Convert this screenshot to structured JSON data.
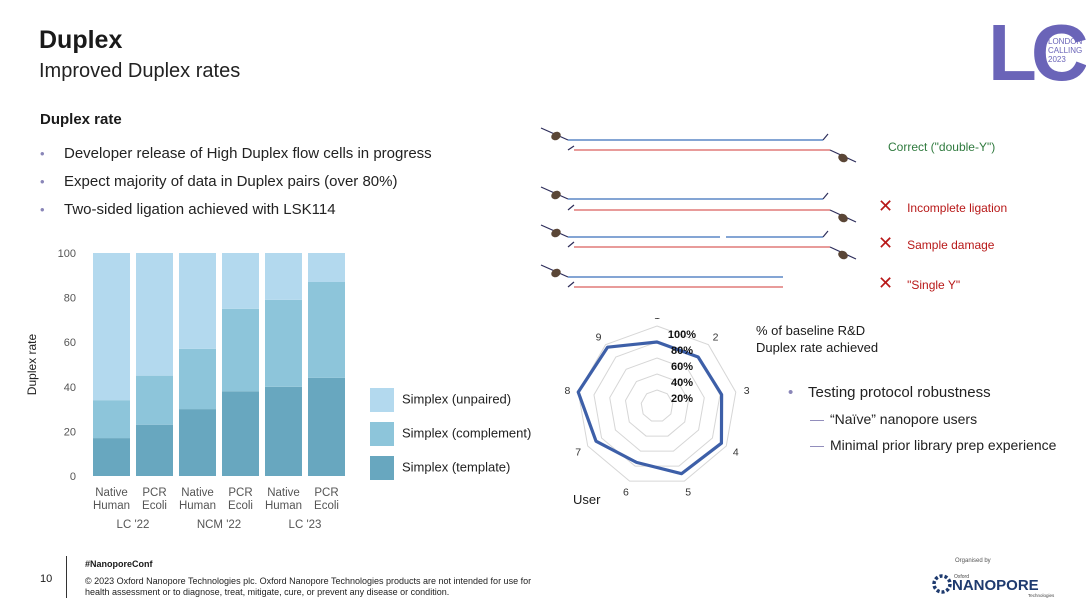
{
  "slide": {
    "title": "Duplex",
    "subtitle": "Improved Duplex rates",
    "section_title": "Duplex rate",
    "bullets": [
      "Developer release of High Duplex flow cells in progress",
      "Expect majority of data in Duplex pairs (over 80%)",
      "Two-sided ligation achieved with LSK114"
    ],
    "logo_lc": {
      "letters": "LC",
      "text_lines": [
        "LONDON",
        "CALLING",
        "2023"
      ]
    }
  },
  "diagram": {
    "labels": {
      "correct": "Correct (\"double-Y\")",
      "incomplete": "Incomplete ligation",
      "damage": "Sample damage",
      "single": "\"Single Y\""
    },
    "icons": [
      "cross-icon",
      "cross-icon",
      "cross-icon"
    ]
  },
  "radar": {
    "caption_lines": [
      "% of baseline R&D",
      "Duplex rate achieved"
    ],
    "user_label": "User",
    "ring_labels": [
      "100%",
      "80%",
      "60%",
      "40%",
      "20%"
    ]
  },
  "right_bullets": {
    "main": "Testing protocol robustness",
    "subs": [
      "“Naïve” nanopore users",
      "Minimal prior library prep experience"
    ]
  },
  "footer": {
    "page_number": "10",
    "hashtag": "#NanoporeConf",
    "copyright": "© 2023 Oxford Nanopore Technologies plc. Oxford Nanopore Technologies products are not intended for use for health assessment or to diagnose, treat, mitigate, cure, or prevent any disease or condition.",
    "organised_by": "Organised by",
    "brand": "NANOPORE",
    "brand_small_top": "Oxford",
    "brand_small_bottom": "Technologies"
  },
  "colors": {
    "unpaired": "#b3d9ee",
    "complement": "#8dc5da",
    "template": "#68a7bf",
    "radar_line": "#3d5fa8",
    "accent_purple": "#6a64b8",
    "strand_blue": "#5b87c6",
    "strand_red": "#e07a78",
    "strand_dark": "#2d2d5a",
    "adapter": "#5a4636",
    "cross": "#b81818",
    "correct_text": "#2f7a3e",
    "error_text": "#b81818"
  },
  "chart_data": [
    {
      "type": "bar",
      "stacked": true,
      "ylabel": "Duplex rate",
      "ylim": [
        0,
        100
      ],
      "yticks": [
        0,
        20,
        40,
        60,
        80,
        100
      ],
      "categories": [
        [
          "Native",
          "Human"
        ],
        [
          "PCR",
          "Ecoli"
        ],
        [
          "Native",
          "Human"
        ],
        [
          "PCR",
          "Ecoli"
        ],
        [
          "Native",
          "Human"
        ],
        [
          "PCR",
          "Ecoli"
        ]
      ],
      "groups": [
        {
          "label": "LC '22",
          "span": [
            0,
            1
          ]
        },
        {
          "label": "NCM '22",
          "span": [
            2,
            3
          ]
        },
        {
          "label": "LC '23",
          "span": [
            4,
            5
          ]
        }
      ],
      "series": [
        {
          "name": "Simplex (template)",
          "color_key": "template",
          "values": [
            17,
            23,
            30,
            38,
            40,
            44
          ]
        },
        {
          "name": "Simplex (complement)",
          "color_key": "complement",
          "values": [
            17,
            22,
            27,
            37,
            39,
            43
          ]
        },
        {
          "name": "Simplex (unpaired)",
          "color_key": "unpaired",
          "values": [
            66,
            55,
            43,
            25,
            21,
            13
          ]
        }
      ],
      "legend_order": [
        "Simplex (unpaired)",
        "Simplex (complement)",
        "Simplex (template)"
      ]
    },
    {
      "type": "radar",
      "axes": [
        "1",
        "2",
        "3",
        "4",
        "5",
        "6",
        "7",
        "8",
        "9"
      ],
      "rmax": 100,
      "rings": [
        20,
        40,
        60,
        80,
        100
      ],
      "values": [
        80,
        80,
        82,
        93,
        90,
        75,
        88,
        100,
        96
      ]
    }
  ]
}
